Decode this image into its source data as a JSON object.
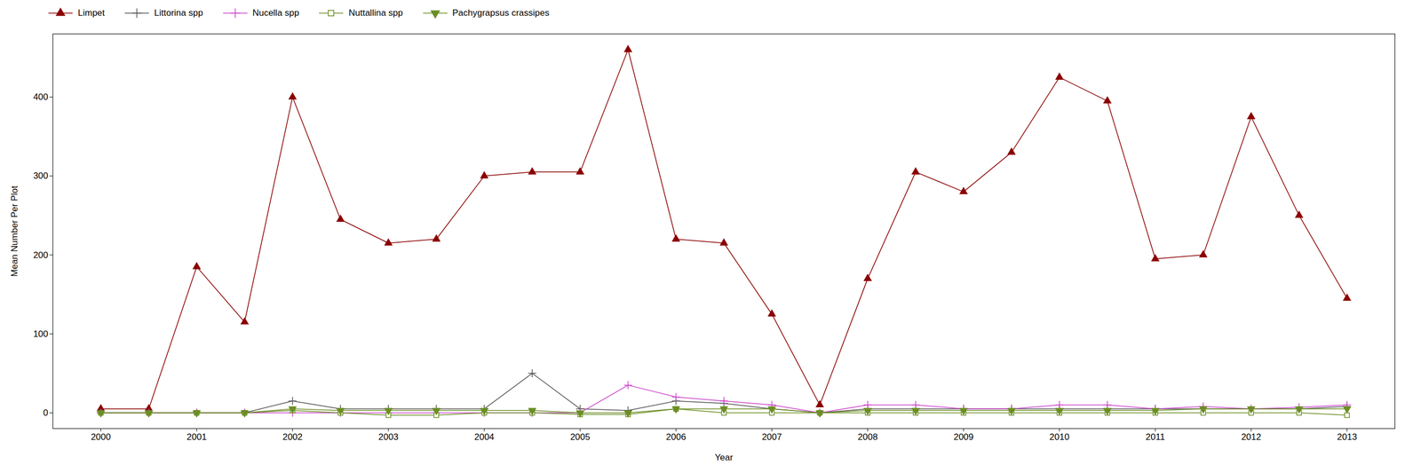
{
  "chart_data": {
    "type": "line",
    "xlabel": "Year",
    "ylabel": "Mean Number Per Plot",
    "x": [
      2000,
      2000.5,
      2001,
      2001.5,
      2002,
      2002.5,
      2003,
      2003.5,
      2004,
      2004.5,
      2005,
      2005.5,
      2006,
      2006.5,
      2007,
      2007.5,
      2008,
      2008.5,
      2009,
      2009.5,
      2010,
      2010.5,
      2011,
      2011.5,
      2012,
      2012.5,
      2013
    ],
    "series": [
      {
        "name": "Limpet",
        "color": "#8B0000",
        "marker": "triangle-up",
        "values": [
          5,
          5,
          185,
          115,
          400,
          245,
          215,
          220,
          300,
          305,
          305,
          460,
          220,
          215,
          125,
          10,
          170,
          305,
          280,
          330,
          425,
          395,
          195,
          200,
          375,
          250,
          145
        ]
      },
      {
        "name": "Littorina spp",
        "color": "#555555",
        "marker": "plus",
        "values": [
          0,
          0,
          0,
          0,
          15,
          5,
          5,
          5,
          5,
          50,
          5,
          3,
          15,
          12,
          5,
          0,
          5,
          5,
          5,
          5,
          5,
          5,
          5,
          5,
          5,
          5,
          8
        ]
      },
      {
        "name": "Nucella spp",
        "color": "#CC44CC",
        "marker": "plus",
        "values": [
          0,
          0,
          0,
          0,
          0,
          0,
          0,
          0,
          0,
          0,
          0,
          35,
          20,
          15,
          10,
          0,
          10,
          10,
          5,
          5,
          10,
          10,
          5,
          8,
          5,
          7,
          10
        ]
      },
      {
        "name": "Nuttallina spp",
        "color": "#6B8E23",
        "marker": "open-square",
        "values": [
          0,
          0,
          0,
          0,
          3,
          0,
          -3,
          -3,
          0,
          0,
          -2,
          -2,
          5,
          0,
          0,
          0,
          0,
          0,
          0,
          0,
          0,
          0,
          0,
          0,
          0,
          0,
          -3
        ]
      },
      {
        "name": "Pachygrapsus crassipes",
        "color": "#6B8E23",
        "marker": "triangle-down",
        "values": [
          0,
          0,
          0,
          0,
          5,
          3,
          3,
          3,
          3,
          3,
          0,
          0,
          5,
          5,
          5,
          0,
          3,
          3,
          3,
          3,
          3,
          3,
          3,
          5,
          5,
          5,
          5
        ]
      }
    ],
    "xlim": [
      1999.5,
      2013.5
    ],
    "ylim": [
      -20,
      480
    ],
    "xticks": [
      2000,
      2001,
      2002,
      2003,
      2004,
      2005,
      2006,
      2007,
      2008,
      2009,
      2010,
      2011,
      2012,
      2013
    ],
    "yticks": [
      0,
      100,
      200,
      300,
      400
    ],
    "grid": false,
    "legend": "top-left"
  }
}
